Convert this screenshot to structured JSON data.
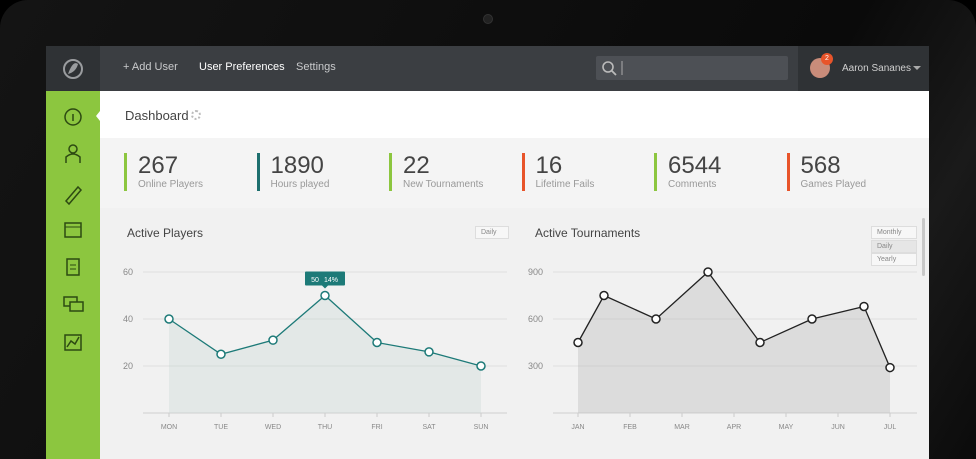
{
  "nav": {
    "links": [
      "+ Add User",
      "User Preferences",
      "Settings"
    ],
    "user": "Aaron Sananes",
    "badge": "2"
  },
  "header": {
    "title": "Dashboard"
  },
  "stats": [
    {
      "value": "267",
      "label": "Online Players",
      "color": "#8cc63f"
    },
    {
      "value": "1890",
      "label": "Hours played",
      "color": "#1d6f6e"
    },
    {
      "value": "22",
      "label": "New Tournaments",
      "color": "#8cc63f"
    },
    {
      "value": "16",
      "label": "Lifetime Fails",
      "color": "#e8542a"
    },
    {
      "value": "6544",
      "label": "Comments",
      "color": "#8cc63f"
    },
    {
      "value": "568",
      "label": "Games Played",
      "color": "#e8542a"
    }
  ],
  "chart_data": [
    {
      "type": "line",
      "title": "Active Players",
      "dropdown": "Daily",
      "categories": [
        "MON",
        "TUE",
        "WED",
        "THU",
        "FRI",
        "SAT",
        "SUN"
      ],
      "series": [
        {
          "name": "Active Players",
          "color": "#1d7a78",
          "values": [
            40,
            25,
            31,
            50,
            30,
            26,
            20
          ]
        }
      ],
      "ylim": [
        0,
        70
      ],
      "yticks": [
        20,
        40,
        60
      ],
      "grid": true,
      "tooltip_change": "14%"
    },
    {
      "type": "line",
      "title": "Active Tournaments",
      "dropdown": "Monthly",
      "dropdown_options": [
        "Daily",
        "Yearly"
      ],
      "x": [
        0,
        0.5,
        1.5,
        2.5,
        3.5,
        4.5,
        5.5,
        6
      ],
      "xlim": [
        0,
        6
      ],
      "xticks": [
        {
          "value": 0,
          "label": "JAN"
        },
        {
          "value": 1,
          "label": "FEB"
        },
        {
          "value": 2,
          "label": "MAR"
        },
        {
          "value": 3,
          "label": "APR"
        },
        {
          "value": 4,
          "label": "MAY"
        },
        {
          "value": 5,
          "label": "JUN"
        },
        {
          "value": 6,
          "label": "JUL"
        }
      ],
      "series": [
        {
          "name": "Active Tournaments",
          "color": "#222222",
          "values": [
            450,
            750,
            600,
            900,
            450,
            600,
            680,
            290
          ]
        }
      ],
      "ylim": [
        0,
        1050
      ],
      "yticks": [
        300,
        600,
        900
      ],
      "grid": true
    }
  ]
}
